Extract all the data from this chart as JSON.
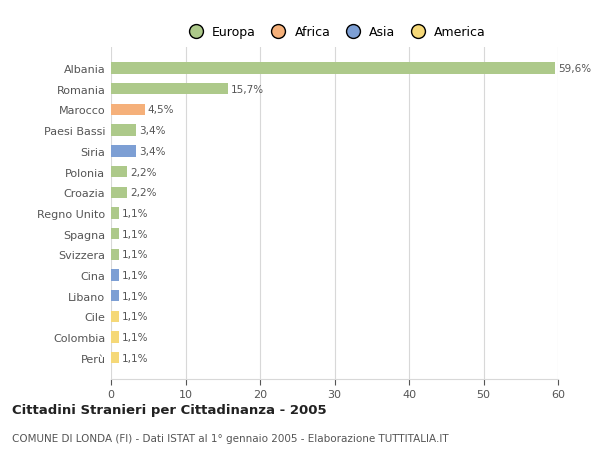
{
  "categories": [
    "Albania",
    "Romania",
    "Marocco",
    "Paesi Bassi",
    "Siria",
    "Polonia",
    "Croazia",
    "Regno Unito",
    "Spagna",
    "Svizzera",
    "Cina",
    "Libano",
    "Cile",
    "Colombia",
    "Perù"
  ],
  "values": [
    59.6,
    15.7,
    4.5,
    3.4,
    3.4,
    2.2,
    2.2,
    1.1,
    1.1,
    1.1,
    1.1,
    1.1,
    1.1,
    1.1,
    1.1
  ],
  "labels": [
    "59,6%",
    "15,7%",
    "4,5%",
    "3,4%",
    "3,4%",
    "2,2%",
    "2,2%",
    "1,1%",
    "1,1%",
    "1,1%",
    "1,1%",
    "1,1%",
    "1,1%",
    "1,1%",
    "1,1%"
  ],
  "colors": [
    "#adc98a",
    "#adc98a",
    "#f5b07a",
    "#adc98a",
    "#7d9fd4",
    "#adc98a",
    "#adc98a",
    "#adc98a",
    "#adc98a",
    "#adc98a",
    "#7d9fd4",
    "#7d9fd4",
    "#f5d878",
    "#f5d878",
    "#f5d878"
  ],
  "legend_labels": [
    "Europa",
    "Africa",
    "Asia",
    "America"
  ],
  "legend_colors": [
    "#adc98a",
    "#f5b07a",
    "#7d9fd4",
    "#f5d878"
  ],
  "title": "Cittadini Stranieri per Cittadinanza - 2005",
  "subtitle": "COMUNE DI LONDA (FI) - Dati ISTAT al 1° gennaio 2005 - Elaborazione TUTTITALIA.IT",
  "xlim": [
    0,
    60
  ],
  "xticks": [
    0,
    10,
    20,
    30,
    40,
    50,
    60
  ],
  "bg_color": "#ffffff",
  "grid_color": "#d8d8d8",
  "bar_height": 0.55
}
